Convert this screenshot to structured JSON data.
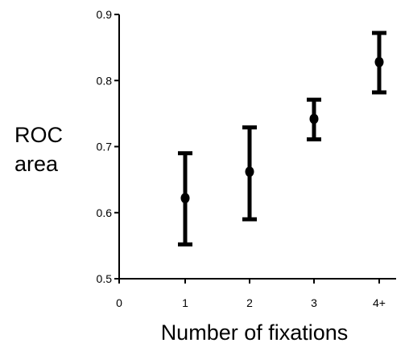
{
  "chart_data": {
    "type": "scatter",
    "title": "",
    "xlabel": "Number of fixations",
    "ylabel_lines": [
      "ROC",
      "area"
    ],
    "x_ticks": [
      "0",
      "1",
      "2",
      "3",
      "4+"
    ],
    "y_ticks": [
      "0.5",
      "0.6",
      "0.7",
      "0.8",
      "0.9"
    ],
    "ylim": [
      0.5,
      0.9
    ],
    "grid": false,
    "points": [
      {
        "x": "1",
        "y": 0.622,
        "y_low": 0.552,
        "y_high": 0.69
      },
      {
        "x": "2",
        "y": 0.662,
        "y_low": 0.59,
        "y_high": 0.729
      },
      {
        "x": "3",
        "y": 0.742,
        "y_low": 0.711,
        "y_high": 0.771
      },
      {
        "x": "4+",
        "y": 0.828,
        "y_low": 0.782,
        "y_high": 0.872
      }
    ],
    "marker_color": "#000000"
  }
}
